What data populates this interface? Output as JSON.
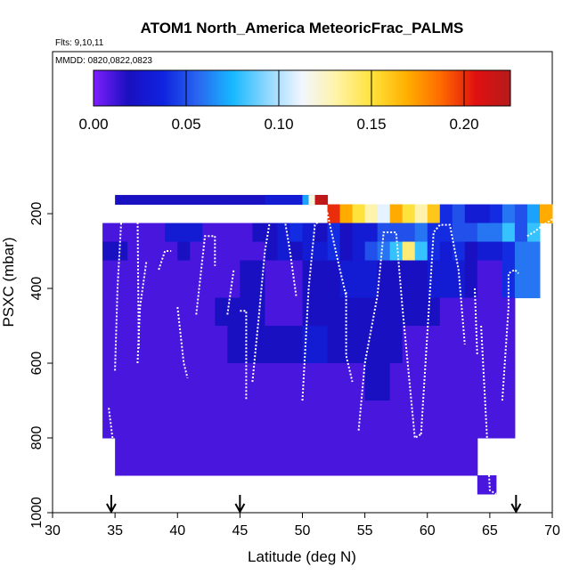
{
  "chart_data": {
    "type": "heatmap",
    "title": "ATOM1 North_America MeteoricFrac_PALMS",
    "flights_note": "Flts: 9,10,11",
    "dates_note": "MMDD: 0820,0822,0823",
    "xlabel": "Latitude (deg N)",
    "ylabel": "PSXC (mbar)",
    "xlim": [
      30,
      70
    ],
    "ylim": [
      1000,
      0
    ],
    "x_ticks": [
      "30",
      "35",
      "40",
      "45",
      "50",
      "55",
      "60",
      "65",
      "70"
    ],
    "y_ticks": [
      "200",
      "400",
      "600",
      "800",
      "1000"
    ],
    "colorbar": {
      "range": [
        0,
        0.225
      ],
      "ticks": [
        "0.00",
        "0.05",
        "0.10",
        "0.15",
        "0.20"
      ],
      "colors": [
        "#7f1fff",
        "#1a0fc0",
        "#0f23e0",
        "#2a66f0",
        "#16b8ff",
        "#8fd8ff",
        "#f2f6ff",
        "#fff3a6",
        "#ffe23c",
        "#ffb000",
        "#ff6a00",
        "#e01010",
        "#b51b1b"
      ]
    },
    "grid": false,
    "arrows_at_latitude": [
      34.7,
      45.0,
      67.1
    ],
    "cells": [
      [
        35,
        44,
        150,
        175,
        0.02
      ],
      [
        44,
        52,
        150,
        175,
        0.02
      ],
      [
        47,
        50,
        150,
        175,
        0.03
      ],
      [
        50,
        50.5,
        150,
        175,
        0.07
      ],
      [
        50.5,
        51,
        150,
        175,
        0.12
      ],
      [
        51,
        52,
        150,
        175,
        0.22
      ],
      [
        52,
        53,
        175,
        225,
        0.2
      ],
      [
        53,
        54,
        175,
        225,
        0.17
      ],
      [
        54,
        55,
        175,
        225,
        0.15
      ],
      [
        55,
        56,
        175,
        225,
        0.13
      ],
      [
        56,
        57,
        175,
        225,
        0.11
      ],
      [
        57,
        58,
        175,
        225,
        0.17
      ],
      [
        58,
        59,
        175,
        225,
        0.15
      ],
      [
        59,
        60,
        175,
        225,
        0.13
      ],
      [
        60,
        61,
        175,
        225,
        0.16
      ],
      [
        61,
        62,
        175,
        225,
        0.04
      ],
      [
        62,
        63,
        175,
        225,
        0.05
      ],
      [
        63,
        65,
        175,
        225,
        0.03
      ],
      [
        65,
        66,
        175,
        225,
        0.04
      ],
      [
        66,
        67,
        175,
        225,
        0.06
      ],
      [
        67,
        68,
        175,
        225,
        0.05
      ],
      [
        68,
        69,
        175,
        225,
        0.07
      ],
      [
        69,
        70,
        175,
        225,
        0.17
      ],
      [
        34,
        39,
        225,
        275,
        0.01
      ],
      [
        39,
        42,
        225,
        275,
        0.03
      ],
      [
        42,
        46,
        225,
        275,
        0.01
      ],
      [
        46,
        48,
        225,
        275,
        0.02
      ],
      [
        48,
        49,
        225,
        275,
        0.03
      ],
      [
        49,
        50,
        225,
        275,
        0.04
      ],
      [
        50,
        51,
        225,
        275,
        0.03
      ],
      [
        51,
        52,
        225,
        275,
        0.02
      ],
      [
        52,
        53,
        225,
        275,
        0.04
      ],
      [
        53,
        54,
        225,
        275,
        0.02
      ],
      [
        54,
        55,
        225,
        275,
        0.03
      ],
      [
        55,
        56,
        225,
        275,
        0.03
      ],
      [
        56,
        57,
        225,
        275,
        0.05
      ],
      [
        57,
        58,
        225,
        275,
        0.05
      ],
      [
        58,
        59,
        225,
        275,
        0.05
      ],
      [
        59,
        60,
        225,
        275,
        0.06
      ],
      [
        60,
        61,
        225,
        275,
        0.04
      ],
      [
        61,
        62,
        225,
        275,
        0.04
      ],
      [
        62,
        63,
        225,
        275,
        0.05
      ],
      [
        63,
        64,
        225,
        275,
        0.05
      ],
      [
        64,
        65,
        225,
        275,
        0.06
      ],
      [
        65,
        66,
        225,
        275,
        0.06
      ],
      [
        66,
        67,
        225,
        275,
        0.08
      ],
      [
        67,
        68,
        225,
        275,
        0.05
      ],
      [
        68,
        69,
        225,
        275,
        0.08
      ],
      [
        34,
        36,
        275,
        325,
        0.02
      ],
      [
        36,
        40,
        275,
        325,
        0.01
      ],
      [
        40,
        41,
        275,
        325,
        0.02
      ],
      [
        41,
        47,
        275,
        325,
        0.01
      ],
      [
        47,
        48,
        275,
        325,
        0.02
      ],
      [
        48,
        49,
        275,
        325,
        0.03
      ],
      [
        49,
        50,
        275,
        325,
        0.02
      ],
      [
        50,
        52,
        275,
        325,
        0.03
      ],
      [
        52,
        53,
        275,
        325,
        0.04
      ],
      [
        53,
        54,
        275,
        325,
        0.02
      ],
      [
        54,
        55,
        275,
        325,
        0.03
      ],
      [
        55,
        56,
        275,
        325,
        0.05
      ],
      [
        56,
        57,
        275,
        325,
        0.06
      ],
      [
        57,
        58,
        275,
        325,
        0.08
      ],
      [
        58,
        59,
        275,
        325,
        0.14
      ],
      [
        59,
        60,
        275,
        325,
        0.08
      ],
      [
        60,
        61,
        275,
        325,
        0.04
      ],
      [
        61,
        62,
        275,
        325,
        0.03
      ],
      [
        62,
        63,
        275,
        325,
        0.04
      ],
      [
        63,
        64,
        275,
        325,
        0.02
      ],
      [
        64,
        65,
        275,
        325,
        0.03
      ],
      [
        65,
        66,
        275,
        325,
        0.03
      ],
      [
        66,
        67,
        275,
        325,
        0.04
      ],
      [
        67,
        68,
        275,
        325,
        0.06
      ],
      [
        68,
        69,
        275,
        325,
        0.06
      ],
      [
        34,
        45,
        325,
        425,
        0.01
      ],
      [
        45,
        47,
        325,
        425,
        0.02
      ],
      [
        47,
        50,
        325,
        425,
        0.01
      ],
      [
        50,
        53,
        325,
        425,
        0.02
      ],
      [
        53,
        56,
        325,
        425,
        0.03
      ],
      [
        56,
        60,
        325,
        425,
        0.02
      ],
      [
        60,
        63,
        325,
        425,
        0.03
      ],
      [
        63,
        64,
        325,
        425,
        0.02
      ],
      [
        64,
        66,
        325,
        425,
        0.01
      ],
      [
        66,
        67,
        325,
        425,
        0.04
      ],
      [
        67,
        68,
        325,
        425,
        0.06
      ],
      [
        68,
        69,
        325,
        425,
        0.06
      ],
      [
        34,
        40,
        425,
        500,
        0.01
      ],
      [
        40,
        43,
        425,
        500,
        0.01
      ],
      [
        43,
        45,
        425,
        500,
        0.02
      ],
      [
        45,
        47,
        425,
        500,
        0.02
      ],
      [
        47,
        50,
        425,
        500,
        0.01
      ],
      [
        50,
        52,
        425,
        500,
        0.02
      ],
      [
        52,
        55,
        425,
        500,
        0.02
      ],
      [
        55,
        58,
        425,
        500,
        0.02
      ],
      [
        58,
        61,
        425,
        500,
        0.02
      ],
      [
        61,
        64,
        425,
        500,
        0.01
      ],
      [
        64,
        67,
        425,
        500,
        0.01
      ],
      [
        34,
        44,
        500,
        600,
        0.01
      ],
      [
        44,
        46,
        500,
        600,
        0.02
      ],
      [
        46,
        50,
        500,
        600,
        0.02
      ],
      [
        50,
        52,
        500,
        600,
        0.03
      ],
      [
        52,
        55,
        500,
        600,
        0.02
      ],
      [
        55,
        58,
        500,
        600,
        0.02
      ],
      [
        58,
        61,
        500,
        600,
        0.01
      ],
      [
        61,
        64,
        500,
        600,
        0.01
      ],
      [
        64,
        67,
        500,
        600,
        0.01
      ],
      [
        34,
        50,
        600,
        700,
        0.01
      ],
      [
        50,
        55,
        600,
        700,
        0.01
      ],
      [
        55,
        57,
        600,
        700,
        0.02
      ],
      [
        57,
        60,
        600,
        700,
        0.01
      ],
      [
        60,
        63,
        600,
        700,
        0.01
      ],
      [
        63,
        67,
        600,
        700,
        0.01
      ],
      [
        34,
        67,
        700,
        800,
        0.01
      ],
      [
        35,
        50,
        800,
        900,
        0.01
      ],
      [
        50,
        64,
        800,
        900,
        0.01
      ],
      [
        64,
        65.5,
        900,
        950,
        0.01
      ]
    ],
    "profiles": [
      [
        [
          35.0,
          620
        ],
        [
          35.2,
          400
        ],
        [
          35.5,
          220
        ],
        [
          36.0,
          190
        ],
        [
          36.8,
          190
        ],
        [
          36.9,
          560
        ]
      ],
      [
        [
          34.5,
          720
        ],
        [
          34.8,
          800
        ]
      ],
      [
        [
          36.8,
          600
        ],
        [
          37.0,
          450
        ],
        [
          37.5,
          330
        ]
      ],
      [
        [
          38.5,
          350
        ],
        [
          39.0,
          300
        ],
        [
          39.5,
          300
        ]
      ],
      [
        [
          40.0,
          450
        ],
        [
          40.5,
          600
        ],
        [
          40.8,
          640
        ]
      ],
      [
        [
          41.5,
          470
        ],
        [
          42.2,
          260
        ],
        [
          43.0,
          260
        ],
        [
          43.0,
          340
        ]
      ],
      [
        [
          44.0,
          470
        ],
        [
          44.5,
          350
        ]
      ],
      [
        [
          45.0,
          460
        ],
        [
          45.5,
          460
        ],
        [
          45.5,
          700
        ]
      ],
      [
        [
          46.0,
          650
        ],
        [
          46.5,
          480
        ],
        [
          47.0,
          300
        ],
        [
          47.5,
          200
        ],
        [
          48.5,
          200
        ],
        [
          49.0,
          300
        ],
        [
          49.5,
          420
        ]
      ],
      [
        [
          50.0,
          700
        ],
        [
          50.5,
          400
        ],
        [
          51.0,
          230
        ],
        [
          52.0,
          200
        ],
        [
          53.0,
          350
        ],
        [
          53.5,
          420
        ]
      ],
      [
        [
          53.5,
          410
        ],
        [
          53.5,
          580
        ],
        [
          54.0,
          650
        ]
      ],
      [
        [
          54.5,
          780
        ],
        [
          55.0,
          600
        ],
        [
          56.0,
          420
        ],
        [
          56.5,
          250
        ],
        [
          57.5,
          250
        ],
        [
          58.0,
          450
        ],
        [
          59.0,
          800
        ],
        [
          59.5,
          790
        ]
      ],
      [
        [
          59.5,
          790
        ],
        [
          60.5,
          250
        ],
        [
          61.0,
          230
        ],
        [
          61.8,
          230
        ],
        [
          62.5,
          350
        ],
        [
          63.0,
          550
        ]
      ],
      [
        [
          63.8,
          400
        ],
        [
          64.0,
          580
        ]
      ],
      [
        [
          64.3,
          500
        ],
        [
          65.0,
          940
        ],
        [
          65.5,
          950
        ]
      ],
      [
        [
          66.0,
          700
        ],
        [
          66.5,
          450
        ],
        [
          66.5,
          360
        ],
        [
          67.0,
          350
        ],
        [
          67.3,
          360
        ]
      ],
      [
        [
          67.5,
          450
        ],
        [
          67.8,
          470
        ]
      ],
      [
        [
          68.0,
          260
        ],
        [
          68.5,
          250
        ],
        [
          69.3,
          230
        ],
        [
          70.0,
          215
        ]
      ]
    ]
  }
}
